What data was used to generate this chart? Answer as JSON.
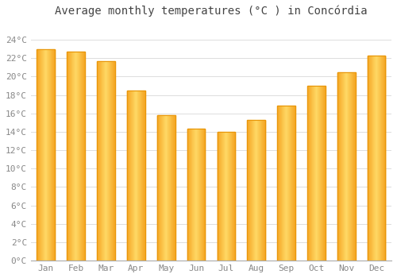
{
  "months": [
    "Jan",
    "Feb",
    "Mar",
    "Apr",
    "May",
    "Jun",
    "Jul",
    "Aug",
    "Sep",
    "Oct",
    "Nov",
    "Dec"
  ],
  "values": [
    23.0,
    22.7,
    21.7,
    18.5,
    15.8,
    14.3,
    14.0,
    15.3,
    16.8,
    19.0,
    20.5,
    22.3
  ],
  "bar_color_dark": "#F5A623",
  "bar_color_light": "#FFD966",
  "title": "Average monthly temperatures (°C ) in Concórdia",
  "ylim": [
    0,
    26
  ],
  "yticks": [
    0,
    2,
    4,
    6,
    8,
    10,
    12,
    14,
    16,
    18,
    20,
    22,
    24
  ],
  "ytick_labels": [
    "0°C",
    "2°C",
    "4°C",
    "6°C",
    "8°C",
    "10°C",
    "12°C",
    "14°C",
    "16°C",
    "18°C",
    "20°C",
    "22°C",
    "24°C"
  ],
  "background_color": "#FFFFFF",
  "plot_background": "#FFFFFF",
  "grid_color": "#DDDDDD",
  "title_fontsize": 10,
  "tick_fontsize": 8,
  "title_color": "#444444",
  "tick_color": "#888888",
  "bar_width": 0.6
}
